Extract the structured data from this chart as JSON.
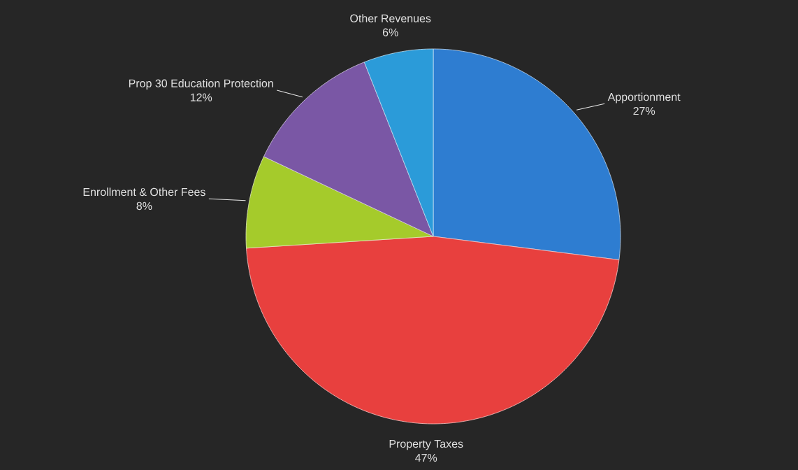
{
  "chart_data": {
    "type": "pie",
    "categories": [
      "Apportionment",
      "Property Taxes",
      "Enrollment & Other Fees",
      "Prop 30 Education Protection",
      "Other Revenues"
    ],
    "values": [
      27,
      47,
      8,
      12,
      6
    ],
    "value_labels": [
      "27%",
      "47%",
      "8%",
      "12%",
      "6%"
    ],
    "colors": [
      "#2e7dd1",
      "#e8403e",
      "#a5cb2b",
      "#7a57a5",
      "#2b9bd9"
    ]
  }
}
